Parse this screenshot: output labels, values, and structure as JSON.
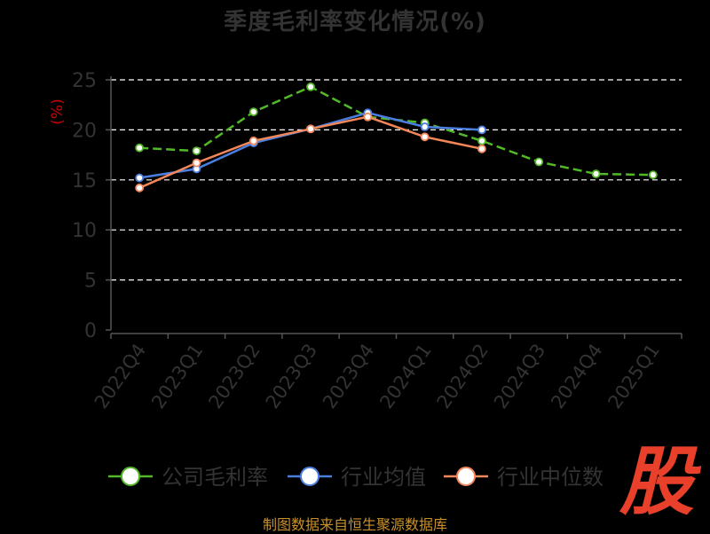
{
  "logo_text": "股",
  "source_text": "制图数据来自恒生聚源数据库",
  "colors": {
    "background": "#000000",
    "grid": "#ffffff",
    "axis": "#555555",
    "tick_label": "#333333",
    "ylabel": "#cc0000",
    "series": [
      "#52b828",
      "#4a7fe0",
      "#f4875a"
    ]
  },
  "chart_data": {
    "type": "line",
    "title": "季度毛利率变化情况(%)",
    "ylabel": "(%)",
    "xlabel": "",
    "ylim": [
      0,
      25
    ],
    "yticks": [
      0,
      5,
      10,
      15,
      20,
      25
    ],
    "grid": true,
    "legend_position": "bottom",
    "categories": [
      "2022Q4",
      "2023Q1",
      "2023Q2",
      "2023Q3",
      "2023Q4",
      "2024Q1",
      "2024Q2",
      "2024Q3",
      "2024Q4",
      "2025Q1"
    ],
    "series": [
      {
        "name": "公司毛利率",
        "values": [
          18.2,
          17.9,
          21.8,
          24.3,
          21.3,
          20.7,
          18.9,
          16.8,
          15.6,
          15.5
        ]
      },
      {
        "name": "行业均值",
        "values": [
          15.2,
          16.1,
          18.7,
          20.1,
          21.7,
          20.3,
          20.0,
          null,
          null,
          null
        ]
      },
      {
        "name": "行业中位数",
        "values": [
          14.2,
          16.7,
          18.9,
          20.1,
          21.3,
          19.3,
          18.1,
          null,
          null,
          null
        ]
      }
    ]
  }
}
